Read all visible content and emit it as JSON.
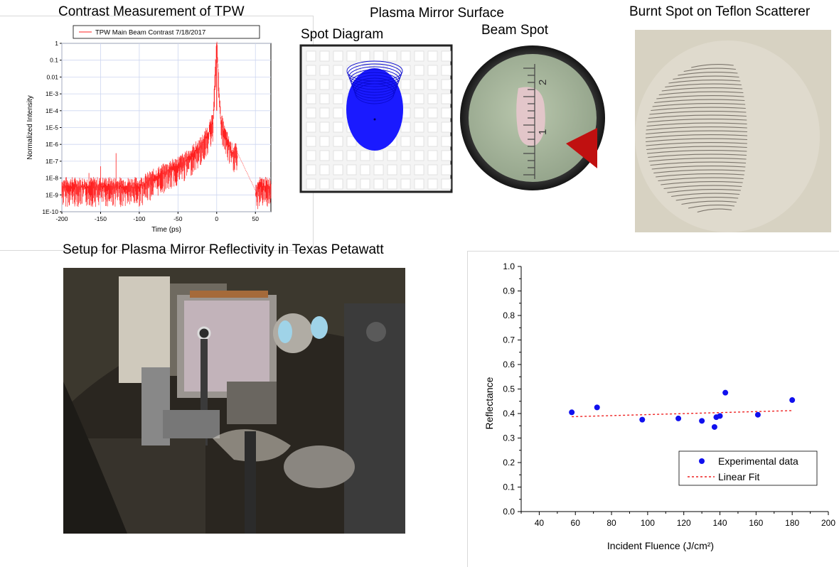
{
  "slide": {
    "contrast_title": "Contrast Measurement of TPW",
    "plasma_title": "Plasma Mirror Surface",
    "spot_diagram_title": "Spot Diagram",
    "beam_spot_title": "Beam Spot",
    "burnt_title": "Burnt Spot on Teflon Scatterer",
    "setup_title": "Setup for Plasma Mirror Reflectivity in Texas Petawatt"
  },
  "beam_spot": {
    "ruler_labels": [
      "2",
      "1"
    ]
  },
  "colors": {
    "trace_red": "#ff2020",
    "point_blue": "#1010ee",
    "fit_red": "#ee2020",
    "spot_blue": "#1a1aff"
  },
  "chart_data": [
    {
      "type": "line",
      "title": "",
      "legend": [
        "TPW Main Beam Contrast 7/18/2017"
      ],
      "legend_position": "top",
      "xlabel": "Time (ps)",
      "ylabel": "Normalized Intensity",
      "xlim": [
        -200,
        70
      ],
      "ylim": [
        1e-10,
        1
      ],
      "log_y": true,
      "x_ticks": [
        "-200",
        "-150",
        "-100",
        "-50",
        "0",
        "50"
      ],
      "y_ticks": [
        "1E-10",
        "1E-9",
        "1E-8",
        "1E-7",
        "1E-6",
        "1E-5",
        "1E-4",
        "1E-3",
        "0.01",
        "0.1",
        "1"
      ],
      "grid": true,
      "series": [
        {
          "name": "TPW Main Beam Contrast 7/18/2017",
          "x": [
            -200,
            -150,
            -130,
            -100,
            -80,
            -60,
            -40,
            -20,
            -10,
            -5,
            0,
            5,
            10,
            15,
            20,
            25,
            50,
            55,
            70
          ],
          "y": [
            3e-09,
            3e-09,
            3e-09,
            3e-09,
            1e-08,
            3e-08,
            1e-07,
            8e-07,
            5e-06,
            2e-05,
            1,
            3e-05,
            4e-06,
            1e-06,
            3e-07,
            3e-07,
            1e-09,
            3e-09,
            3e-09
          ]
        }
      ]
    },
    {
      "type": "scatter",
      "title": "",
      "xlabel": "Incident Fluence (J/cm²)",
      "ylabel": "Reflectance",
      "xlim": [
        30,
        200
      ],
      "ylim": [
        0,
        1
      ],
      "x_ticks": [
        "40",
        "60",
        "80",
        "100",
        "120",
        "140",
        "160",
        "180",
        "200"
      ],
      "y_ticks": [
        "0.0",
        "0.1",
        "0.2",
        "0.3",
        "0.4",
        "0.5",
        "0.6",
        "0.7",
        "0.8",
        "0.9",
        "1.0"
      ],
      "grid": false,
      "legend_position": "bottom-right",
      "series": [
        {
          "name": "Experimental data",
          "x": [
            58,
            72,
            97,
            117,
            130,
            137,
            138,
            140,
            143,
            161,
            180
          ],
          "y": [
            0.405,
            0.425,
            0.375,
            0.38,
            0.37,
            0.345,
            0.385,
            0.39,
            0.485,
            0.395,
            0.455
          ]
        },
        {
          "name": "Linear Fit",
          "x": [
            58,
            180
          ],
          "y": [
            0.387,
            0.412
          ]
        }
      ]
    }
  ]
}
